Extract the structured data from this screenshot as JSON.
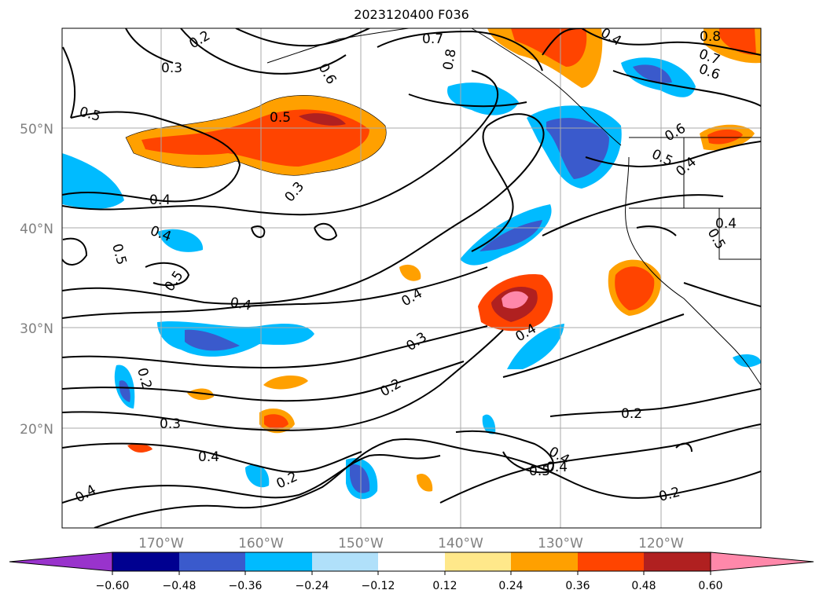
{
  "title": "2023120400 F036",
  "map": {
    "lat_labels": [
      "50°N",
      "40°N",
      "30°N",
      "20°N"
    ],
    "lon_labels": [
      "170°W",
      "160°W",
      "150°W",
      "140°W",
      "130°W",
      "120°W"
    ],
    "contour_labels": [
      "0.2",
      "0.3",
      "0.5",
      "0.6",
      "0.7",
      "0.8",
      "0.4",
      "0.5",
      "0.3",
      "0.4",
      "0.4",
      "0.5",
      "0.5",
      "0.4",
      "0.5",
      "0.4",
      "0.3",
      "0.2",
      "0.4",
      "0.2",
      "0.3",
      "0.4",
      "0.2",
      "0.4",
      "0.2",
      "0.5",
      "0.4",
      "0.2",
      "0.6",
      "0.5",
      "0.4",
      "0.4",
      "0.4",
      "0.7",
      "0.8",
      "0.6"
    ]
  },
  "colorbar": {
    "colors": [
      "#9933cc",
      "#000090",
      "#3a5acc",
      "#00bbff",
      "#b0e0fa",
      "#ffffff",
      "#ffe88a",
      "#ffa000",
      "#ff4400",
      "#b02020",
      "#ff88aa"
    ],
    "ticks": [
      "−0.60",
      "−0.48",
      "−0.36",
      "−0.24",
      "−0.12",
      "0.12",
      "0.24",
      "0.36",
      "0.48",
      "0.60"
    ]
  }
}
